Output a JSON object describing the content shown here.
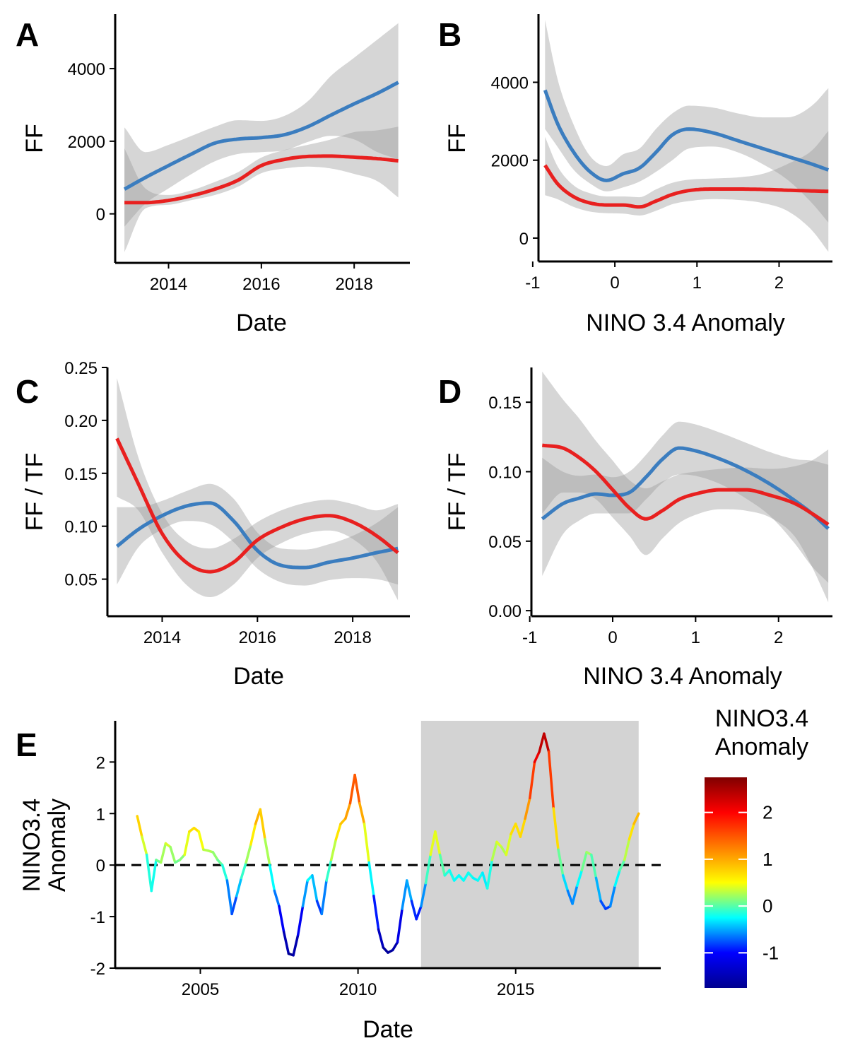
{
  "colors": {
    "blue": "#3B7DBF",
    "red": "#E8201F",
    "ribbon": "#999999",
    "shade": "#D3D3D3"
  },
  "chart_data": [
    {
      "id": "A",
      "type": "line",
      "panel_label": "A",
      "xlabel": "Date",
      "ylabel": "FF",
      "xlim": [
        2012.85,
        2019.2
      ],
      "ylim": [
        -1350,
        5500
      ],
      "xticks": [
        2014,
        2016,
        2018
      ],
      "xtick_labels": [
        "2014",
        "2016",
        "2018"
      ],
      "yticks": [
        0,
        2000,
        4000
      ],
      "ytick_labels": [
        "0",
        "2000",
        "4000"
      ],
      "series": [
        {
          "color": "blue",
          "x": [
            2013.05,
            2013.5,
            2014,
            2014.5,
            2015,
            2015.5,
            2016,
            2016.5,
            2017,
            2017.5,
            2018,
            2018.5,
            2018.95
          ],
          "y": [
            680,
            1000,
            1330,
            1650,
            1950,
            2060,
            2100,
            2180,
            2400,
            2720,
            3030,
            3320,
            3620
          ],
          "lower": [
            -350,
            280,
            700,
            1100,
            1450,
            1650,
            1700,
            1750,
            1980,
            2150,
            2050,
            1700,
            1500
          ],
          "upper": [
            2380,
            1700,
            1900,
            2150,
            2400,
            2580,
            2560,
            2700,
            3100,
            3800,
            4300,
            4800,
            5250
          ]
        },
        {
          "color": "red",
          "x": [
            2013.05,
            2013.5,
            2014,
            2014.5,
            2015,
            2015.5,
            2016,
            2016.5,
            2017,
            2017.5,
            2018,
            2018.5,
            2018.95
          ],
          "y": [
            310,
            310,
            370,
            500,
            680,
            930,
            1330,
            1500,
            1580,
            1590,
            1560,
            1520,
            1460
          ],
          "lower": [
            -1050,
            150,
            250,
            380,
            520,
            750,
            1120,
            1250,
            1300,
            1250,
            1100,
            900,
            450
          ],
          "upper": [
            1800,
            700,
            520,
            650,
            880,
            1150,
            1550,
            1760,
            1900,
            2050,
            2250,
            2300,
            2400
          ]
        }
      ]
    },
    {
      "id": "B",
      "type": "line",
      "panel_label": "B",
      "xlabel": "NINO 3.4 Anomaly",
      "ylabel": "FF",
      "xlim": [
        -0.93,
        2.65
      ],
      "ylim": [
        -600,
        5750
      ],
      "xticks": [
        -1,
        0,
        1,
        2
      ],
      "xtick_labels": [
        "-1",
        "0",
        "1",
        "2"
      ],
      "yticks": [
        0,
        2000,
        4000
      ],
      "ytick_labels": [
        "0",
        "2000",
        "4000"
      ],
      "series": [
        {
          "color": "blue",
          "x": [
            -0.85,
            -0.7,
            -0.5,
            -0.3,
            -0.1,
            0.1,
            0.3,
            0.5,
            0.7,
            0.9,
            1.2,
            1.5,
            1.8,
            2.1,
            2.4,
            2.6
          ],
          "y": [
            3800,
            2950,
            2200,
            1700,
            1480,
            1650,
            1800,
            2200,
            2650,
            2800,
            2700,
            2500,
            2300,
            2100,
            1900,
            1750
          ],
          "lower": [
            2800,
            2350,
            1750,
            1400,
            1200,
            1300,
            1450,
            1700,
            2000,
            2300,
            2350,
            2200,
            1900,
            1500,
            900,
            400
          ],
          "upper": [
            5600,
            4100,
            2900,
            2100,
            1850,
            2150,
            2300,
            2800,
            3200,
            3400,
            3350,
            3200,
            3100,
            3100,
            3400,
            3850
          ]
        },
        {
          "color": "red",
          "x": [
            -0.85,
            -0.7,
            -0.5,
            -0.3,
            -0.1,
            0.1,
            0.3,
            0.5,
            0.7,
            0.9,
            1.2,
            1.5,
            1.8,
            2.1,
            2.4,
            2.6
          ],
          "y": [
            1870,
            1400,
            1060,
            900,
            850,
            850,
            800,
            950,
            1120,
            1220,
            1260,
            1260,
            1250,
            1230,
            1210,
            1200
          ],
          "lower": [
            1100,
            1000,
            800,
            680,
            640,
            630,
            580,
            700,
            870,
            950,
            1000,
            980,
            900,
            700,
            200,
            -350
          ],
          "upper": [
            2600,
            1850,
            1350,
            1150,
            1070,
            1070,
            1050,
            1250,
            1420,
            1500,
            1530,
            1560,
            1650,
            1900,
            2250,
            2750
          ]
        }
      ]
    },
    {
      "id": "C",
      "type": "line",
      "panel_label": "C",
      "xlabel": "Date",
      "ylabel": "FF / TF",
      "xlim": [
        2012.85,
        2019.2
      ],
      "ylim": [
        0.015,
        0.25
      ],
      "xticks": [
        2014,
        2016,
        2018
      ],
      "xtick_labels": [
        "2014",
        "2016",
        "2018"
      ],
      "yticks": [
        0.05,
        0.1,
        0.15,
        0.2,
        0.25
      ],
      "ytick_labels": [
        "0.05",
        "0.10",
        "0.15",
        "0.20",
        "0.25"
      ],
      "series": [
        {
          "color": "blue",
          "x": [
            2013.05,
            2013.5,
            2014,
            2014.5,
            2015,
            2015.5,
            2016,
            2016.5,
            2017,
            2017.5,
            2018,
            2018.5,
            2018.95
          ],
          "y": [
            0.081,
            0.097,
            0.11,
            0.119,
            0.122,
            0.105,
            0.077,
            0.063,
            0.061,
            0.066,
            0.07,
            0.075,
            0.079
          ],
          "lower": [
            0.045,
            0.08,
            0.097,
            0.105,
            0.102,
            0.085,
            0.06,
            0.047,
            0.044,
            0.049,
            0.051,
            0.05,
            0.045
          ],
          "upper": [
            0.118,
            0.118,
            0.124,
            0.133,
            0.14,
            0.126,
            0.094,
            0.079,
            0.078,
            0.083,
            0.091,
            0.103,
            0.118
          ]
        },
        {
          "color": "red",
          "x": [
            2013.05,
            2013.5,
            2014,
            2014.5,
            2015,
            2015.5,
            2016,
            2016.5,
            2017,
            2017.5,
            2018,
            2018.5,
            2018.95
          ],
          "y": [
            0.183,
            0.14,
            0.093,
            0.066,
            0.057,
            0.066,
            0.087,
            0.099,
            0.107,
            0.11,
            0.104,
            0.091,
            0.075
          ],
          "lower": [
            0.128,
            0.115,
            0.075,
            0.045,
            0.033,
            0.045,
            0.07,
            0.084,
            0.093,
            0.096,
            0.088,
            0.067,
            0.03
          ],
          "upper": [
            0.24,
            0.165,
            0.112,
            0.086,
            0.079,
            0.088,
            0.104,
            0.115,
            0.122,
            0.125,
            0.121,
            0.115,
            0.121
          ]
        }
      ]
    },
    {
      "id": "D",
      "type": "line",
      "panel_label": "D",
      "xlabel": "NINO 3.4 Anomaly",
      "ylabel": "FF / TF",
      "xlim": [
        -0.98,
        2.65
      ],
      "ylim": [
        -0.004,
        0.175
      ],
      "xticks": [
        -1,
        0,
        1,
        2
      ],
      "xtick_labels": [
        "-1",
        "0",
        "1",
        "2"
      ],
      "yticks": [
        0,
        0.05,
        0.1,
        0.15
      ],
      "ytick_labels": [
        "0.00",
        "0.05",
        "0.10",
        "0.15"
      ],
      "series": [
        {
          "color": "blue",
          "x": [
            -0.85,
            -0.6,
            -0.4,
            -0.2,
            0,
            0.2,
            0.4,
            0.6,
            0.8,
            1.0,
            1.3,
            1.6,
            1.9,
            2.2,
            2.4,
            2.6
          ],
          "y": [
            0.066,
            0.077,
            0.081,
            0.084,
            0.083,
            0.085,
            0.096,
            0.109,
            0.117,
            0.115,
            0.109,
            0.101,
            0.091,
            0.079,
            0.07,
            0.059
          ],
          "lower": [
            0.025,
            0.055,
            0.065,
            0.07,
            0.07,
            0.07,
            0.08,
            0.092,
            0.098,
            0.097,
            0.091,
            0.081,
            0.068,
            0.048,
            0.032,
            0.02
          ],
          "upper": [
            0.11,
            0.1,
            0.097,
            0.098,
            0.096,
            0.1,
            0.112,
            0.126,
            0.136,
            0.134,
            0.128,
            0.121,
            0.114,
            0.109,
            0.108,
            0.105
          ]
        },
        {
          "color": "red",
          "x": [
            -0.85,
            -0.6,
            -0.4,
            -0.2,
            0,
            0.2,
            0.4,
            0.6,
            0.8,
            1.0,
            1.3,
            1.6,
            1.9,
            2.2,
            2.4,
            2.6
          ],
          "y": [
            0.119,
            0.117,
            0.11,
            0.1,
            0.087,
            0.074,
            0.066,
            0.072,
            0.08,
            0.084,
            0.087,
            0.087,
            0.083,
            0.077,
            0.07,
            0.062
          ],
          "lower": [
            0.07,
            0.085,
            0.085,
            0.08,
            0.067,
            0.054,
            0.04,
            0.052,
            0.063,
            0.069,
            0.073,
            0.072,
            0.067,
            0.053,
            0.032,
            0.006
          ],
          "upper": [
            0.172,
            0.152,
            0.138,
            0.122,
            0.108,
            0.094,
            0.088,
            0.093,
            0.098,
            0.1,
            0.102,
            0.103,
            0.102,
            0.104,
            0.108,
            0.116
          ]
        }
      ]
    },
    {
      "id": "E",
      "type": "line",
      "panel_label": "E",
      "xlabel": "Date",
      "ylabel": "NINO3.4\nAnomaly",
      "xlim": [
        2002.3,
        2019.6
      ],
      "ylim": [
        -2,
        2.8
      ],
      "xticks": [
        2005,
        2010,
        2015
      ],
      "xtick_labels": [
        "2005",
        "2010",
        "2015"
      ],
      "yticks": [
        -2,
        -1,
        0,
        1,
        2
      ],
      "ytick_labels": [
        "-2",
        "-1",
        "0",
        "1",
        "2"
      ],
      "reference_line_y": 0,
      "shaded_region_x": [
        2012,
        2018.9
      ],
      "color_scale": {
        "min": -1.75,
        "max": 2.75,
        "stops": [
          "#00008F",
          "#0000FF",
          "#00FFFF",
          "#FFFF00",
          "#FF7F00",
          "#FF0000",
          "#800000"
        ]
      },
      "series": [
        {
          "x": [
            2003.0,
            2003.15,
            2003.3,
            2003.45,
            2003.6,
            2003.75,
            2003.9,
            2004.05,
            2004.2,
            2004.35,
            2004.5,
            2004.65,
            2004.8,
            2004.95,
            2005.1,
            2005.25,
            2005.4,
            2005.55,
            2005.7,
            2005.85,
            2006.0,
            2006.15,
            2006.3,
            2006.45,
            2006.6,
            2006.75,
            2006.9,
            2007.05,
            2007.2,
            2007.35,
            2007.5,
            2007.65,
            2007.8,
            2007.95,
            2008.1,
            2008.25,
            2008.4,
            2008.55,
            2008.7,
            2008.85,
            2009.0,
            2009.15,
            2009.3,
            2009.45,
            2009.6,
            2009.75,
            2009.9,
            2010.05,
            2010.2,
            2010.35,
            2010.5,
            2010.65,
            2010.8,
            2010.95,
            2011.1,
            2011.25,
            2011.4,
            2011.55,
            2011.7,
            2011.85,
            2012.0,
            2012.15,
            2012.3,
            2012.45,
            2012.6,
            2012.75,
            2012.9,
            2013.05,
            2013.2,
            2013.35,
            2013.5,
            2013.65,
            2013.8,
            2013.95,
            2014.1,
            2014.25,
            2014.4,
            2014.55,
            2014.7,
            2014.85,
            2015.0,
            2015.15,
            2015.3,
            2015.45,
            2015.6,
            2015.75,
            2015.9,
            2016.05,
            2016.2,
            2016.35,
            2016.5,
            2016.65,
            2016.8,
            2016.95,
            2017.1,
            2017.25,
            2017.4,
            2017.55,
            2017.7,
            2017.85,
            2018.0,
            2018.15,
            2018.3,
            2018.45,
            2018.6,
            2018.75,
            2018.9
          ],
          "y": [
            0.95,
            0.55,
            0.2,
            -0.5,
            0.1,
            0.05,
            0.42,
            0.35,
            0.05,
            0.1,
            0.2,
            0.65,
            0.72,
            0.65,
            0.3,
            0.28,
            0.25,
            0.1,
            0.0,
            -0.3,
            -0.95,
            -0.6,
            -0.25,
            0.05,
            0.4,
            0.8,
            1.08,
            0.5,
            0.0,
            -0.5,
            -0.8,
            -1.3,
            -1.72,
            -1.75,
            -1.35,
            -0.8,
            -0.3,
            -0.2,
            -0.7,
            -0.95,
            -0.3,
            0.1,
            0.5,
            0.8,
            0.9,
            1.2,
            1.75,
            1.2,
            0.8,
            0.05,
            -0.6,
            -1.25,
            -1.6,
            -1.7,
            -1.65,
            -1.5,
            -0.85,
            -0.3,
            -0.7,
            -1.05,
            -0.8,
            -0.35,
            0.2,
            0.65,
            0.2,
            -0.2,
            -0.1,
            -0.3,
            -0.2,
            -0.3,
            -0.15,
            -0.25,
            -0.3,
            -0.15,
            -0.45,
            0.1,
            0.45,
            0.35,
            0.2,
            0.6,
            0.8,
            0.55,
            0.9,
            1.3,
            2.0,
            2.2,
            2.55,
            2.2,
            1.1,
            0.3,
            -0.2,
            -0.5,
            -0.75,
            -0.4,
            -0.1,
            0.25,
            0.2,
            -0.25,
            -0.7,
            -0.85,
            -0.8,
            -0.4,
            -0.1,
            0.1,
            0.5,
            0.8,
            1.0
          ]
        }
      ]
    }
  ],
  "legend": {
    "title": "NINO3.4\nAnomaly",
    "tick_values": [
      -1,
      0,
      1,
      2
    ],
    "tick_labels": [
      "-1",
      "0",
      "1",
      "2"
    ]
  }
}
